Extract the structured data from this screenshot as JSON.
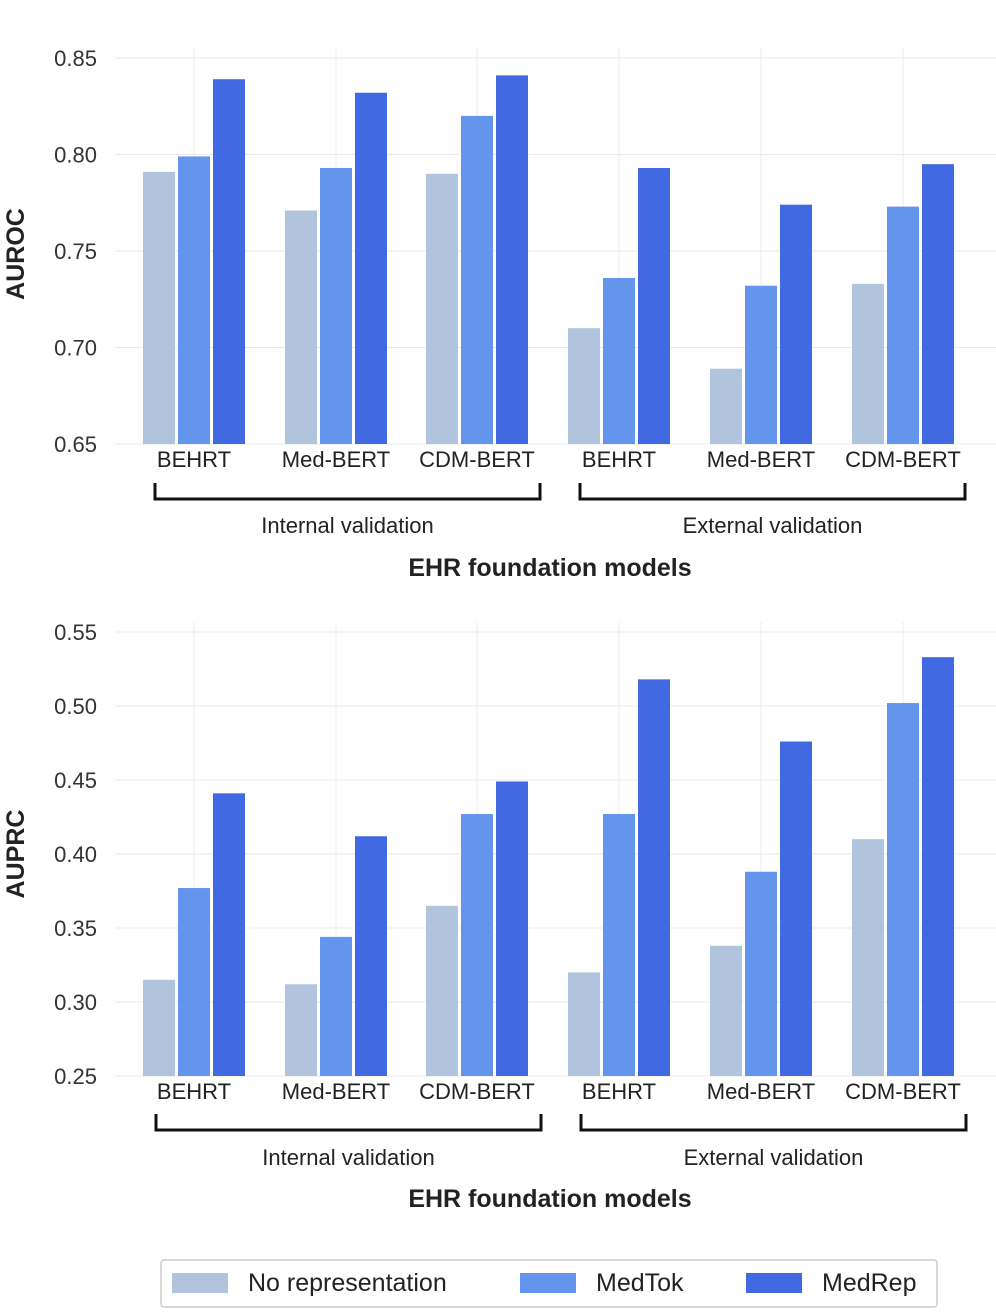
{
  "legend": [
    {
      "label": "No representation",
      "color": "#b0c4de"
    },
    {
      "label": "MedTok",
      "color": "#6495ed"
    },
    {
      "label": "MedRep",
      "color": "#4169e1"
    }
  ],
  "chart_data": [
    {
      "type": "bar",
      "ylabel": "AUROC",
      "xlabel": "EHR foundation models",
      "ylim": [
        0.65,
        0.85
      ],
      "yticks": [
        "0.65",
        "0.70",
        "0.75",
        "0.80",
        "0.85"
      ],
      "grid": true,
      "categories": [
        "BEHRT",
        "Med-BERT",
        "CDM-BERT",
        "BEHRT",
        "Med-BERT",
        "CDM-BERT"
      ],
      "groups": [
        {
          "label": "Internal validation",
          "categories": [
            0,
            1,
            2
          ]
        },
        {
          "label": "External validation",
          "categories": [
            3,
            4,
            5
          ]
        }
      ],
      "series": [
        {
          "name": "No representation",
          "values": [
            0.791,
            0.771,
            0.79,
            0.71,
            0.689,
            0.733
          ]
        },
        {
          "name": "MedTok",
          "values": [
            0.799,
            0.793,
            0.82,
            0.736,
            0.732,
            0.773
          ]
        },
        {
          "name": "MedRep",
          "values": [
            0.839,
            0.832,
            0.841,
            0.793,
            0.774,
            0.795
          ]
        }
      ]
    },
    {
      "type": "bar",
      "ylabel": "AUPRC",
      "xlabel": "EHR foundation models",
      "ylim": [
        0.25,
        0.55
      ],
      "yticks": [
        "0.25",
        "0.30",
        "0.35",
        "0.40",
        "0.45",
        "0.50",
        "0.55"
      ],
      "grid": true,
      "categories": [
        "BEHRT",
        "Med-BERT",
        "CDM-BERT",
        "BEHRT",
        "Med-BERT",
        "CDM-BERT"
      ],
      "groups": [
        {
          "label": "Internal validation",
          "categories": [
            0,
            1,
            2
          ]
        },
        {
          "label": "External validation",
          "categories": [
            3,
            4,
            5
          ]
        }
      ],
      "series": [
        {
          "name": "No representation",
          "values": [
            0.315,
            0.312,
            0.365,
            0.32,
            0.338,
            0.41
          ]
        },
        {
          "name": "MedTok",
          "values": [
            0.377,
            0.344,
            0.427,
            0.427,
            0.388,
            0.502
          ]
        },
        {
          "name": "MedRep",
          "values": [
            0.441,
            0.412,
            0.449,
            0.518,
            0.476,
            0.533
          ]
        }
      ]
    }
  ]
}
